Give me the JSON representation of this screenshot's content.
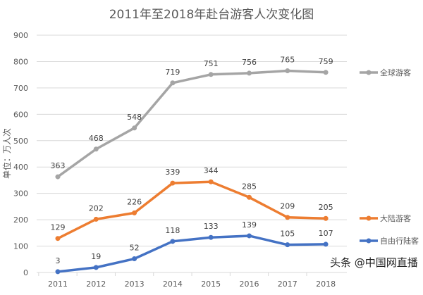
{
  "chart_data": {
    "type": "line",
    "title": "2011年至2018年赴台游客人次变化图",
    "ylabel": "单位：万人次",
    "xlabel": "",
    "categories": [
      "2011",
      "2012",
      "2013",
      "2014",
      "2015",
      "2016",
      "2017",
      "2018"
    ],
    "ylim": [
      0,
      900
    ],
    "yticks": [
      0,
      100,
      200,
      300,
      400,
      500,
      600,
      700,
      800,
      900
    ],
    "grid": true,
    "legend_position": "right",
    "series": [
      {
        "name": "全球游客",
        "color": "#A5A5A5",
        "values": [
          363,
          468,
          548,
          719,
          751,
          756,
          765,
          759
        ]
      },
      {
        "name": "大陆游客",
        "color": "#ED7D31",
        "values": [
          129,
          202,
          226,
          339,
          344,
          285,
          209,
          205
        ]
      },
      {
        "name": "自由行陆客",
        "color": "#4472C4",
        "values": [
          3,
          19,
          52,
          118,
          133,
          139,
          105,
          107
        ]
      }
    ]
  },
  "watermark": "头条 @中国网直播"
}
